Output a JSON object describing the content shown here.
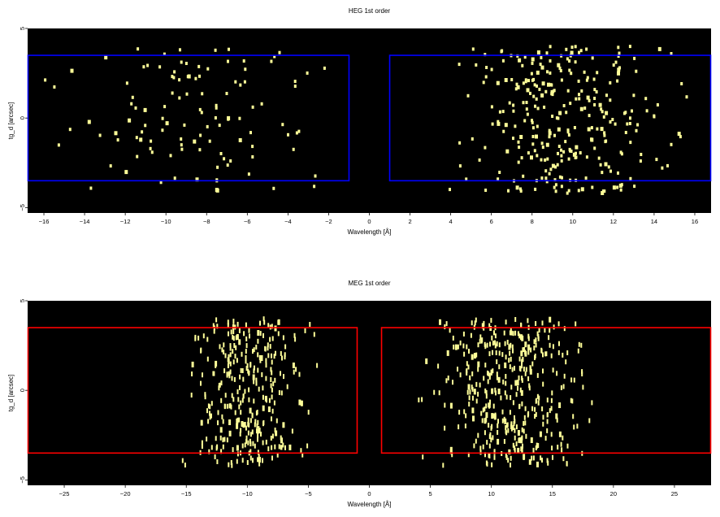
{
  "chart_data": [
    {
      "type": "scatter",
      "title": "HEG 1st order",
      "xlabel": "Wavelength [Å]",
      "ylabel": "tg_d [arcsec]",
      "xlim": [
        -16.8,
        16.8
      ],
      "ylim": [
        -5.3,
        5.0
      ],
      "xticks": [
        -16,
        -14,
        -12,
        -10,
        -8,
        -6,
        -4,
        -2,
        0,
        2,
        4,
        6,
        8,
        10,
        12,
        14,
        16
      ],
      "xtick_labels": [
        "−16",
        "−14",
        "−12",
        "−10",
        "−8",
        "−6",
        "−4",
        "−2",
        "0",
        "2",
        "4",
        "6",
        "8",
        "10",
        "12",
        "14",
        "16"
      ],
      "yticks": [
        5,
        0,
        -5
      ],
      "ytick_labels": [
        "5",
        "0",
        "−5"
      ],
      "background": "#000000",
      "point_color": "#ffff99",
      "region_color": "#0000ff",
      "regions": [
        {
          "x": [
            -16.8,
            -1.0
          ],
          "y": [
            -3.5,
            3.5
          ]
        },
        {
          "x": [
            1.0,
            16.8
          ],
          "y": [
            -3.5,
            3.5
          ]
        }
      ],
      "arms": [
        {
          "x": [
            -16.0,
            -0.8
          ],
          "y": [
            -4.2,
            3.9
          ],
          "count": 115,
          "center": -9.0,
          "spread": 5.0
        },
        {
          "x": [
            1.0,
            16.8
          ],
          "y": [
            -4.2,
            4.0
          ],
          "count": 300,
          "center": 9.5,
          "spread": 3.2
        }
      ]
    },
    {
      "type": "scatter",
      "title": "MEG 1st order",
      "xlabel": "Wavelength [Å]",
      "ylabel": "tg_d [arcsec]",
      "xlim": [
        -28.0,
        28.0
      ],
      "ylim": [
        -5.3,
        5.0
      ],
      "xticks": [
        -25,
        -20,
        -15,
        -10,
        -5,
        0,
        5,
        10,
        15,
        20,
        25
      ],
      "xtick_labels": [
        "−25",
        "−20",
        "−15",
        "−10",
        "−5",
        "0",
        "5",
        "10",
        "15",
        "20",
        "25"
      ],
      "yticks": [
        5,
        0,
        -5
      ],
      "ytick_labels": [
        "5",
        "0",
        "−5"
      ],
      "background": "#000000",
      "point_color": "#ffff99",
      "region_color": "#ff0000",
      "regions": [
        {
          "x": [
            -28.0,
            -1.0
          ],
          "y": [
            -3.5,
            3.5
          ]
        },
        {
          "x": [
            1.0,
            28.0
          ],
          "y": [
            -3.5,
            3.5
          ]
        }
      ],
      "arms": [
        {
          "x": [
            -24.5,
            -2.5
          ],
          "y": [
            -4.2,
            4.0
          ],
          "count": 330,
          "center": -10.0,
          "spread": 3.0
        },
        {
          "x": [
            2.0,
            23.0
          ],
          "y": [
            -4.2,
            4.0
          ],
          "count": 420,
          "center": 11.5,
          "spread": 3.8
        }
      ]
    }
  ]
}
